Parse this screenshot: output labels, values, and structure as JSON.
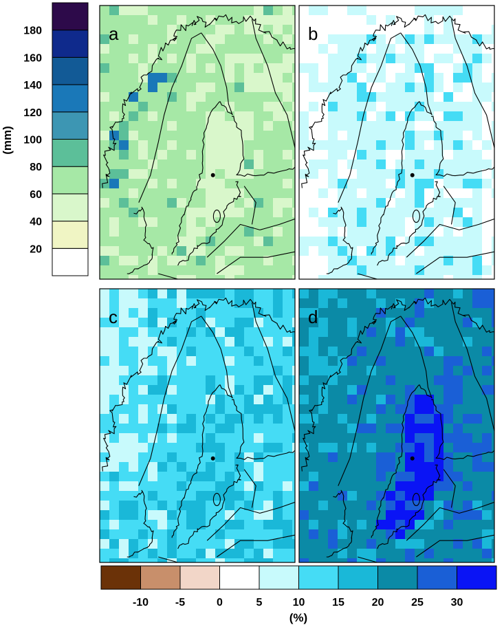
{
  "panels": [
    {
      "label": "a"
    },
    {
      "label": "b"
    },
    {
      "label": "c"
    },
    {
      "label": "d"
    }
  ],
  "top_legend": {
    "unit": "(mm)",
    "ticks": [
      "20",
      "40",
      "60",
      "80",
      "100",
      "120",
      "140",
      "160",
      "180"
    ],
    "colors": [
      "#ffffff",
      "#f0f5c4",
      "#d9f7cb",
      "#a6e8a6",
      "#5cbf99",
      "#3d96b3",
      "#1a78b8",
      "#125a96",
      "#0f2a8c",
      "#2d0a4a"
    ]
  },
  "bottom_legend": {
    "unit": "(%)",
    "ticks": [
      "-10",
      "-5",
      "0",
      "5",
      "10",
      "15",
      "20",
      "25",
      "30"
    ],
    "colors": [
      "#6b3208",
      "#c88f6b",
      "#f2d6c8",
      "#ffffff",
      "#c8fafc",
      "#45dcf5",
      "#1ab8d8",
      "#0b8aa6",
      "#1a5fd6",
      "#0a14f5"
    ]
  },
  "map_colors": {
    "precip_base": "#a6e8a6",
    "precip_light": "#d9f7cb",
    "precip_mid": "#5cbf99",
    "precip_high": "#1a78b8",
    "precip_peak": "#2d0a4a",
    "b_base": "#c8fafc",
    "b_blank": "#ffffff",
    "b_cyan": "#45dcf5",
    "c_base": "#45dcf5",
    "c_mid": "#1ab8d8",
    "c_light": "#c8fafc",
    "d_base": "#0b8aa6",
    "d_blue": "#1a5fd6",
    "d_deep": "#0a14f5",
    "d_light": "#1ab8d8",
    "coast": "#000000"
  }
}
